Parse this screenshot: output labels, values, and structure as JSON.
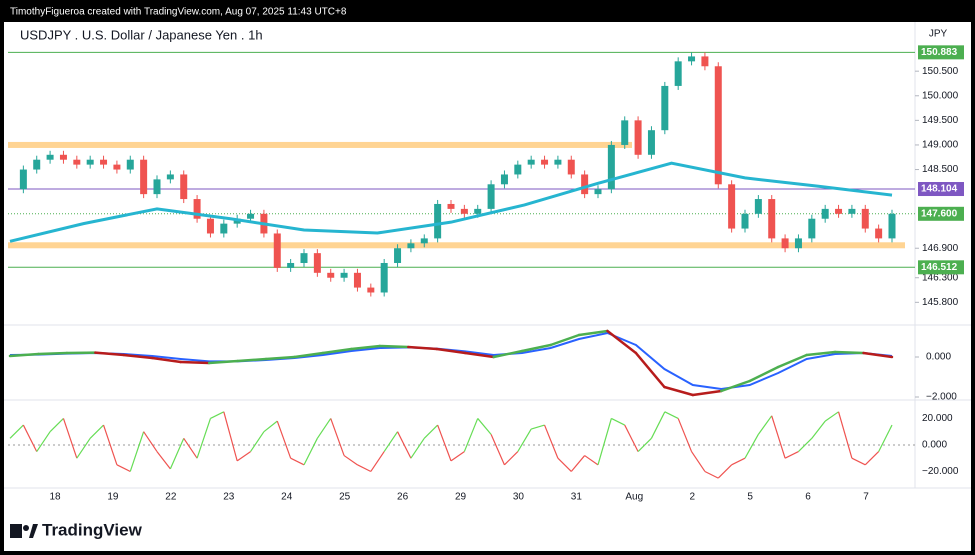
{
  "chart_data": {
    "type": "candlestick",
    "credit": "TimothyFigueroa created with TradingView.com, Aug 07, 2025 11:43 UTC+8",
    "title": "USDJPY . U.S. Dollar / Japanese Yen . 1h",
    "currency": "JPY",
    "brand": "TradingView",
    "up_color": "#26a69a",
    "down_color": "#ef5350",
    "close": [
      148.1,
      148.5,
      148.7,
      148.8,
      148.7,
      148.6,
      148.7,
      148.6,
      148.5,
      148.7,
      148.0,
      148.3,
      148.4,
      147.9,
      147.5,
      147.2,
      147.4,
      147.5,
      147.6,
      147.2,
      146.5,
      146.6,
      146.8,
      146.4,
      146.3,
      146.4,
      146.1,
      146.0,
      146.6,
      146.9,
      147.0,
      147.1,
      147.8,
      147.7,
      147.6,
      147.7,
      148.2,
      148.4,
      148.6,
      148.7,
      148.6,
      148.7,
      148.4,
      148.0,
      148.1,
      149.0,
      149.5,
      148.8,
      149.3,
      150.2,
      150.7,
      150.8,
      150.6,
      148.2,
      147.3,
      147.6,
      147.9,
      147.1,
      146.9,
      147.1,
      147.5,
      147.7,
      147.6,
      147.7,
      147.3,
      147.1,
      147.6
    ],
    "ma": {
      "color": "#26b5d0",
      "values": [
        147.04,
        147.4,
        147.7,
        147.5,
        147.27,
        147.21,
        147.43,
        147.78,
        148.22,
        148.63,
        148.33,
        148.16,
        147.98
      ]
    },
    "zones": {
      "color": "#ffcc80",
      "values": [
        149.0,
        146.96
      ]
    },
    "price_lines": [
      {
        "value": 150.883,
        "label": "150.883",
        "color": "#4caf50"
      },
      {
        "value": 148.104,
        "label": "148.104",
        "color": "#7e57c2"
      },
      {
        "value": 147.6,
        "label": "147.600",
        "color": "#4caf50"
      },
      {
        "value": 146.512,
        "label": "146.512",
        "color": "#4caf50"
      }
    ],
    "ylim": [
      145.4,
      151.5
    ],
    "yticks": [
      {
        "value": 150.5,
        "label": "150.500"
      },
      {
        "value": 150,
        "label": "150.000"
      },
      {
        "value": 149.5,
        "label": "149.500"
      },
      {
        "value": 149,
        "label": "149.000"
      },
      {
        "value": 148.5,
        "label": "148.500"
      },
      {
        "value": 146.9,
        "label": "146.900"
      },
      {
        "value": 146.3,
        "label": "146.300"
      },
      {
        "value": 145.8,
        "label": "145.800"
      }
    ],
    "categories": [
      "18",
      "19",
      "22",
      "23",
      "24",
      "25",
      "26",
      "29",
      "30",
      "31",
      "Aug",
      "2",
      "5",
      "6",
      "7"
    ],
    "macd": {
      "ylim": [
        -2.05,
        1.45
      ],
      "yticks": [
        {
          "value": 0,
          "label": "0.000"
        },
        {
          "value": -2,
          "label": "−2.000"
        }
      ],
      "fast": {
        "up_color": "#4caf50",
        "down_color": "#b71c1c",
        "values": [
          0.05,
          0.15,
          0.2,
          0.22,
          0.1,
          -0.05,
          -0.25,
          -0.3,
          -0.2,
          -0.1,
          0.0,
          0.2,
          0.4,
          0.55,
          0.5,
          0.4,
          0.2,
          0.0,
          0.3,
          0.6,
          1.1,
          1.3,
          0.2,
          -1.5,
          -1.9,
          -1.7,
          -1.2,
          -0.5,
          0.1,
          0.25,
          0.2,
          0.0
        ]
      },
      "slow": {
        "color": "#2962ff",
        "values": [
          0.1,
          0.12,
          0.17,
          0.2,
          0.15,
          0.05,
          -0.1,
          -0.22,
          -0.22,
          -0.15,
          -0.05,
          0.1,
          0.3,
          0.45,
          0.48,
          0.42,
          0.28,
          0.1,
          0.2,
          0.45,
          0.9,
          1.2,
          0.6,
          -0.6,
          -1.4,
          -1.6,
          -1.4,
          -0.8,
          -0.1,
          0.15,
          0.2,
          0.05
        ]
      }
    },
    "oscillator": {
      "ylim": [
        -30.2,
        32.4
      ],
      "yticks": [
        {
          "value": 20,
          "label": "20.000"
        },
        {
          "value": 0,
          "label": "0.000"
        },
        {
          "value": -20,
          "label": "−20.000"
        }
      ],
      "up_color": "#66dd55",
      "down_color": "#ef5350",
      "values": [
        5,
        15,
        -5,
        10,
        20,
        -10,
        5,
        15,
        -15,
        -20,
        10,
        -5,
        -18,
        5,
        -10,
        20,
        25,
        -12,
        -5,
        10,
        18,
        -10,
        -15,
        5,
        20,
        -8,
        -15,
        -20,
        -5,
        10,
        -10,
        5,
        15,
        -12,
        -5,
        20,
        8,
        -15,
        -5,
        12,
        15,
        -10,
        -20,
        -8,
        -15,
        20,
        15,
        -5,
        5,
        25,
        20,
        -5,
        -20,
        -25,
        -15,
        -10,
        8,
        22,
        -10,
        -5,
        5,
        18,
        25,
        -10,
        -15,
        -5,
        15
      ]
    }
  }
}
